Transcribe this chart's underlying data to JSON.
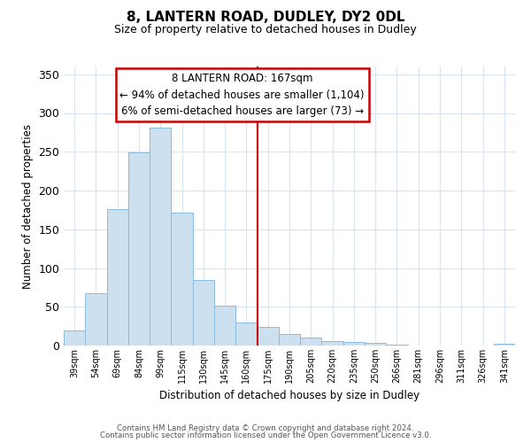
{
  "title": "8, LANTERN ROAD, DUDLEY, DY2 0DL",
  "subtitle": "Size of property relative to detached houses in Dudley",
  "xlabel": "Distribution of detached houses by size in Dudley",
  "ylabel": "Number of detached properties",
  "categories": [
    "39sqm",
    "54sqm",
    "69sqm",
    "84sqm",
    "99sqm",
    "115sqm",
    "130sqm",
    "145sqm",
    "160sqm",
    "175sqm",
    "190sqm",
    "205sqm",
    "220sqm",
    "235sqm",
    "250sqm",
    "266sqm",
    "281sqm",
    "296sqm",
    "311sqm",
    "326sqm",
    "341sqm"
  ],
  "values": [
    20,
    67,
    176,
    249,
    281,
    171,
    85,
    52,
    30,
    24,
    15,
    10,
    6,
    5,
    4,
    1,
    0,
    0,
    0,
    0,
    2
  ],
  "bar_color": "#cce0f0",
  "bar_edge_color": "#88bbdd",
  "vline_x": 8.53,
  "vline_color": "#cc0000",
  "annotation_title": "8 LANTERN ROAD: 167sqm",
  "annotation_line1": "← 94% of detached houses are smaller (1,104)",
  "annotation_line2": "6% of semi-detached houses are larger (73) →",
  "annotation_box_color": "#ffffff",
  "annotation_box_edge_color": "#cc0000",
  "ylim": [
    0,
    360
  ],
  "yticks": [
    0,
    50,
    100,
    150,
    200,
    250,
    300,
    350
  ],
  "footer1": "Contains HM Land Registry data © Crown copyright and database right 2024.",
  "footer2": "Contains public sector information licensed under the Open Government Licence v3.0.",
  "bg_color": "#ffffff",
  "grid_color": "#d8e4f0"
}
